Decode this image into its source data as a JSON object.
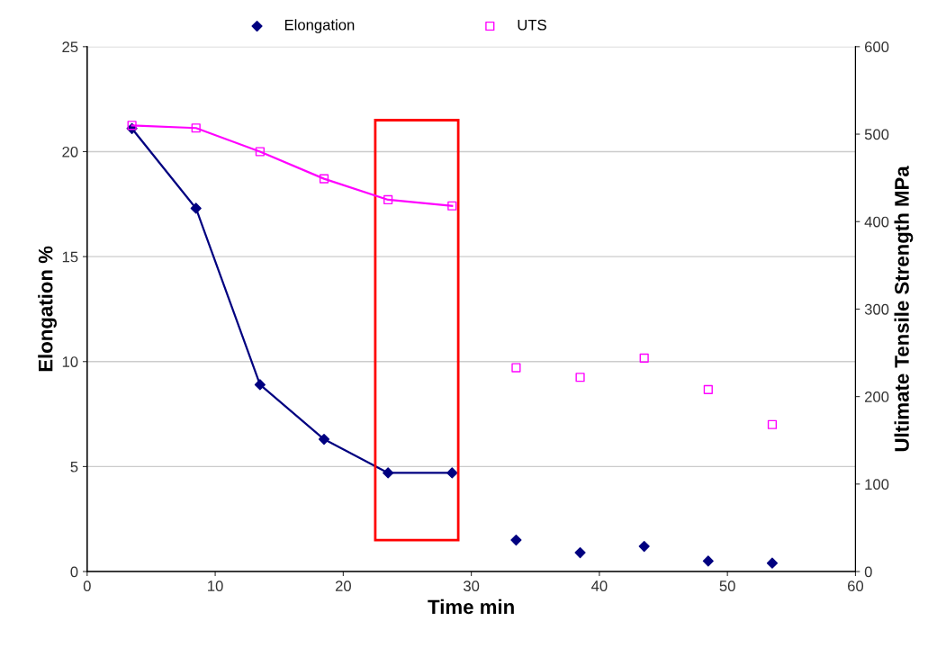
{
  "chart_data": {
    "type": "scatter",
    "xlabel": "Time min",
    "ylabel": "Elongation %",
    "y2label": "Ultimate Tensile Strength MPa",
    "xlim": [
      0,
      60
    ],
    "xticks": [
      0,
      10,
      20,
      30,
      40,
      50,
      60
    ],
    "ylim": [
      0,
      25
    ],
    "yticks": [
      0,
      5,
      10,
      15,
      20,
      25
    ],
    "y2lim": [
      0,
      600
    ],
    "y2ticks": [
      0,
      100,
      200,
      300,
      400,
      500,
      600
    ],
    "grid": "y",
    "legend": "top",
    "series": [
      {
        "name": "Elongation",
        "marker": "diamond",
        "color": "#000080",
        "x": [
          3.5,
          8.5,
          13.5,
          18.5,
          23.5,
          28.5,
          33.5,
          38.5,
          43.5,
          48.5,
          53.5
        ],
        "values": [
          21.1,
          17.3,
          8.9,
          6.3,
          4.7,
          4.7,
          1.5,
          0.9,
          1.2,
          0.5,
          0.4
        ]
      },
      {
        "name": "UTS",
        "marker": "square",
        "axis": "y2",
        "color": "#ff00ff",
        "x": [
          3.5,
          8.5,
          13.5,
          18.5,
          23.5,
          28.5,
          33.5,
          38.5,
          43.5,
          48.5,
          53.5
        ],
        "values": [
          510,
          507,
          480,
          449,
          425,
          418,
          233,
          222,
          244,
          208,
          168
        ]
      },
      {
        "type": "line",
        "color": "#000080",
        "x": [
          3.5,
          8.5,
          13.5,
          18.5,
          23.5,
          28.5
        ],
        "values": [
          21.1,
          17.3,
          8.9,
          6.3,
          4.7,
          4.7
        ]
      },
      {
        "type": "line",
        "axis": "y2",
        "color": "#ff00ff",
        "x": [
          3.5,
          8.5,
          13.5,
          18.5,
          23.5,
          28.5
        ],
        "values": [
          510,
          507,
          480,
          449,
          425,
          418
        ]
      }
    ]
  }
}
